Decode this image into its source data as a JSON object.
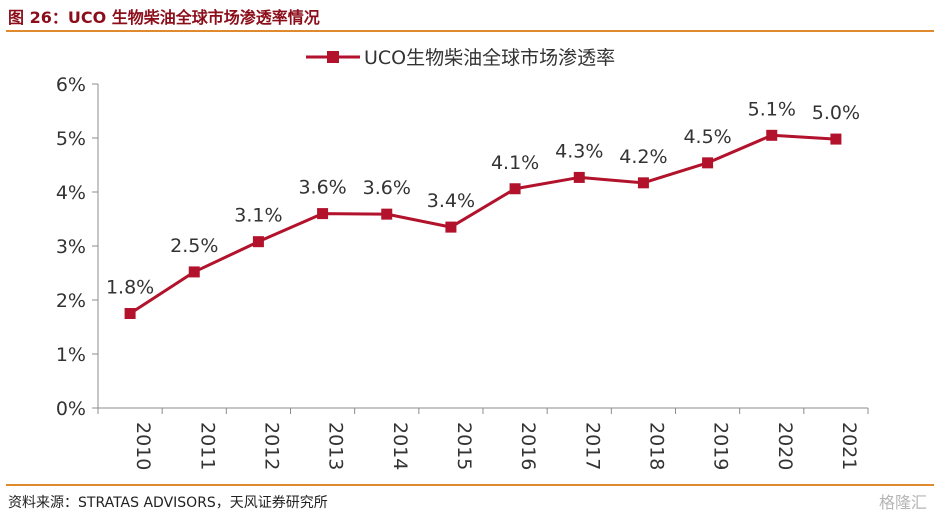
{
  "figure": {
    "title": "图 26：UCO 生物柴油全球市场渗透率情况",
    "source": "资料来源：STRATAS ADVISORS，天风证券研究所",
    "watermark": "格隆汇"
  },
  "colors": {
    "series": "#b2122b",
    "title": "#8b0e1a",
    "rule": "#e08a2e",
    "axis": "#8c8c8c"
  },
  "chart_data": {
    "type": "line",
    "x": [
      "2010",
      "2011",
      "2012",
      "2013",
      "2014",
      "2015",
      "2016",
      "2017",
      "2018",
      "2019",
      "2020",
      "2021"
    ],
    "series": [
      {
        "name": "UCO生物柴油全球市场渗透率",
        "values": [
          1.75,
          2.52,
          3.08,
          3.6,
          3.59,
          3.35,
          4.06,
          4.27,
          4.17,
          4.54,
          5.05,
          4.98
        ],
        "labels": [
          "1.8%",
          "2.5%",
          "3.1%",
          "3.6%",
          "3.6%",
          "3.4%",
          "4.1%",
          "4.3%",
          "4.2%",
          "4.5%",
          "5.1%",
          "5.0%"
        ]
      }
    ],
    "ylim": [
      0,
      6
    ],
    "yticks": [
      "0%",
      "1%",
      "2%",
      "3%",
      "4%",
      "5%",
      "6%"
    ],
    "legend": "top-center",
    "grid": false,
    "marker": "square",
    "xlabel_rotation": 90
  }
}
